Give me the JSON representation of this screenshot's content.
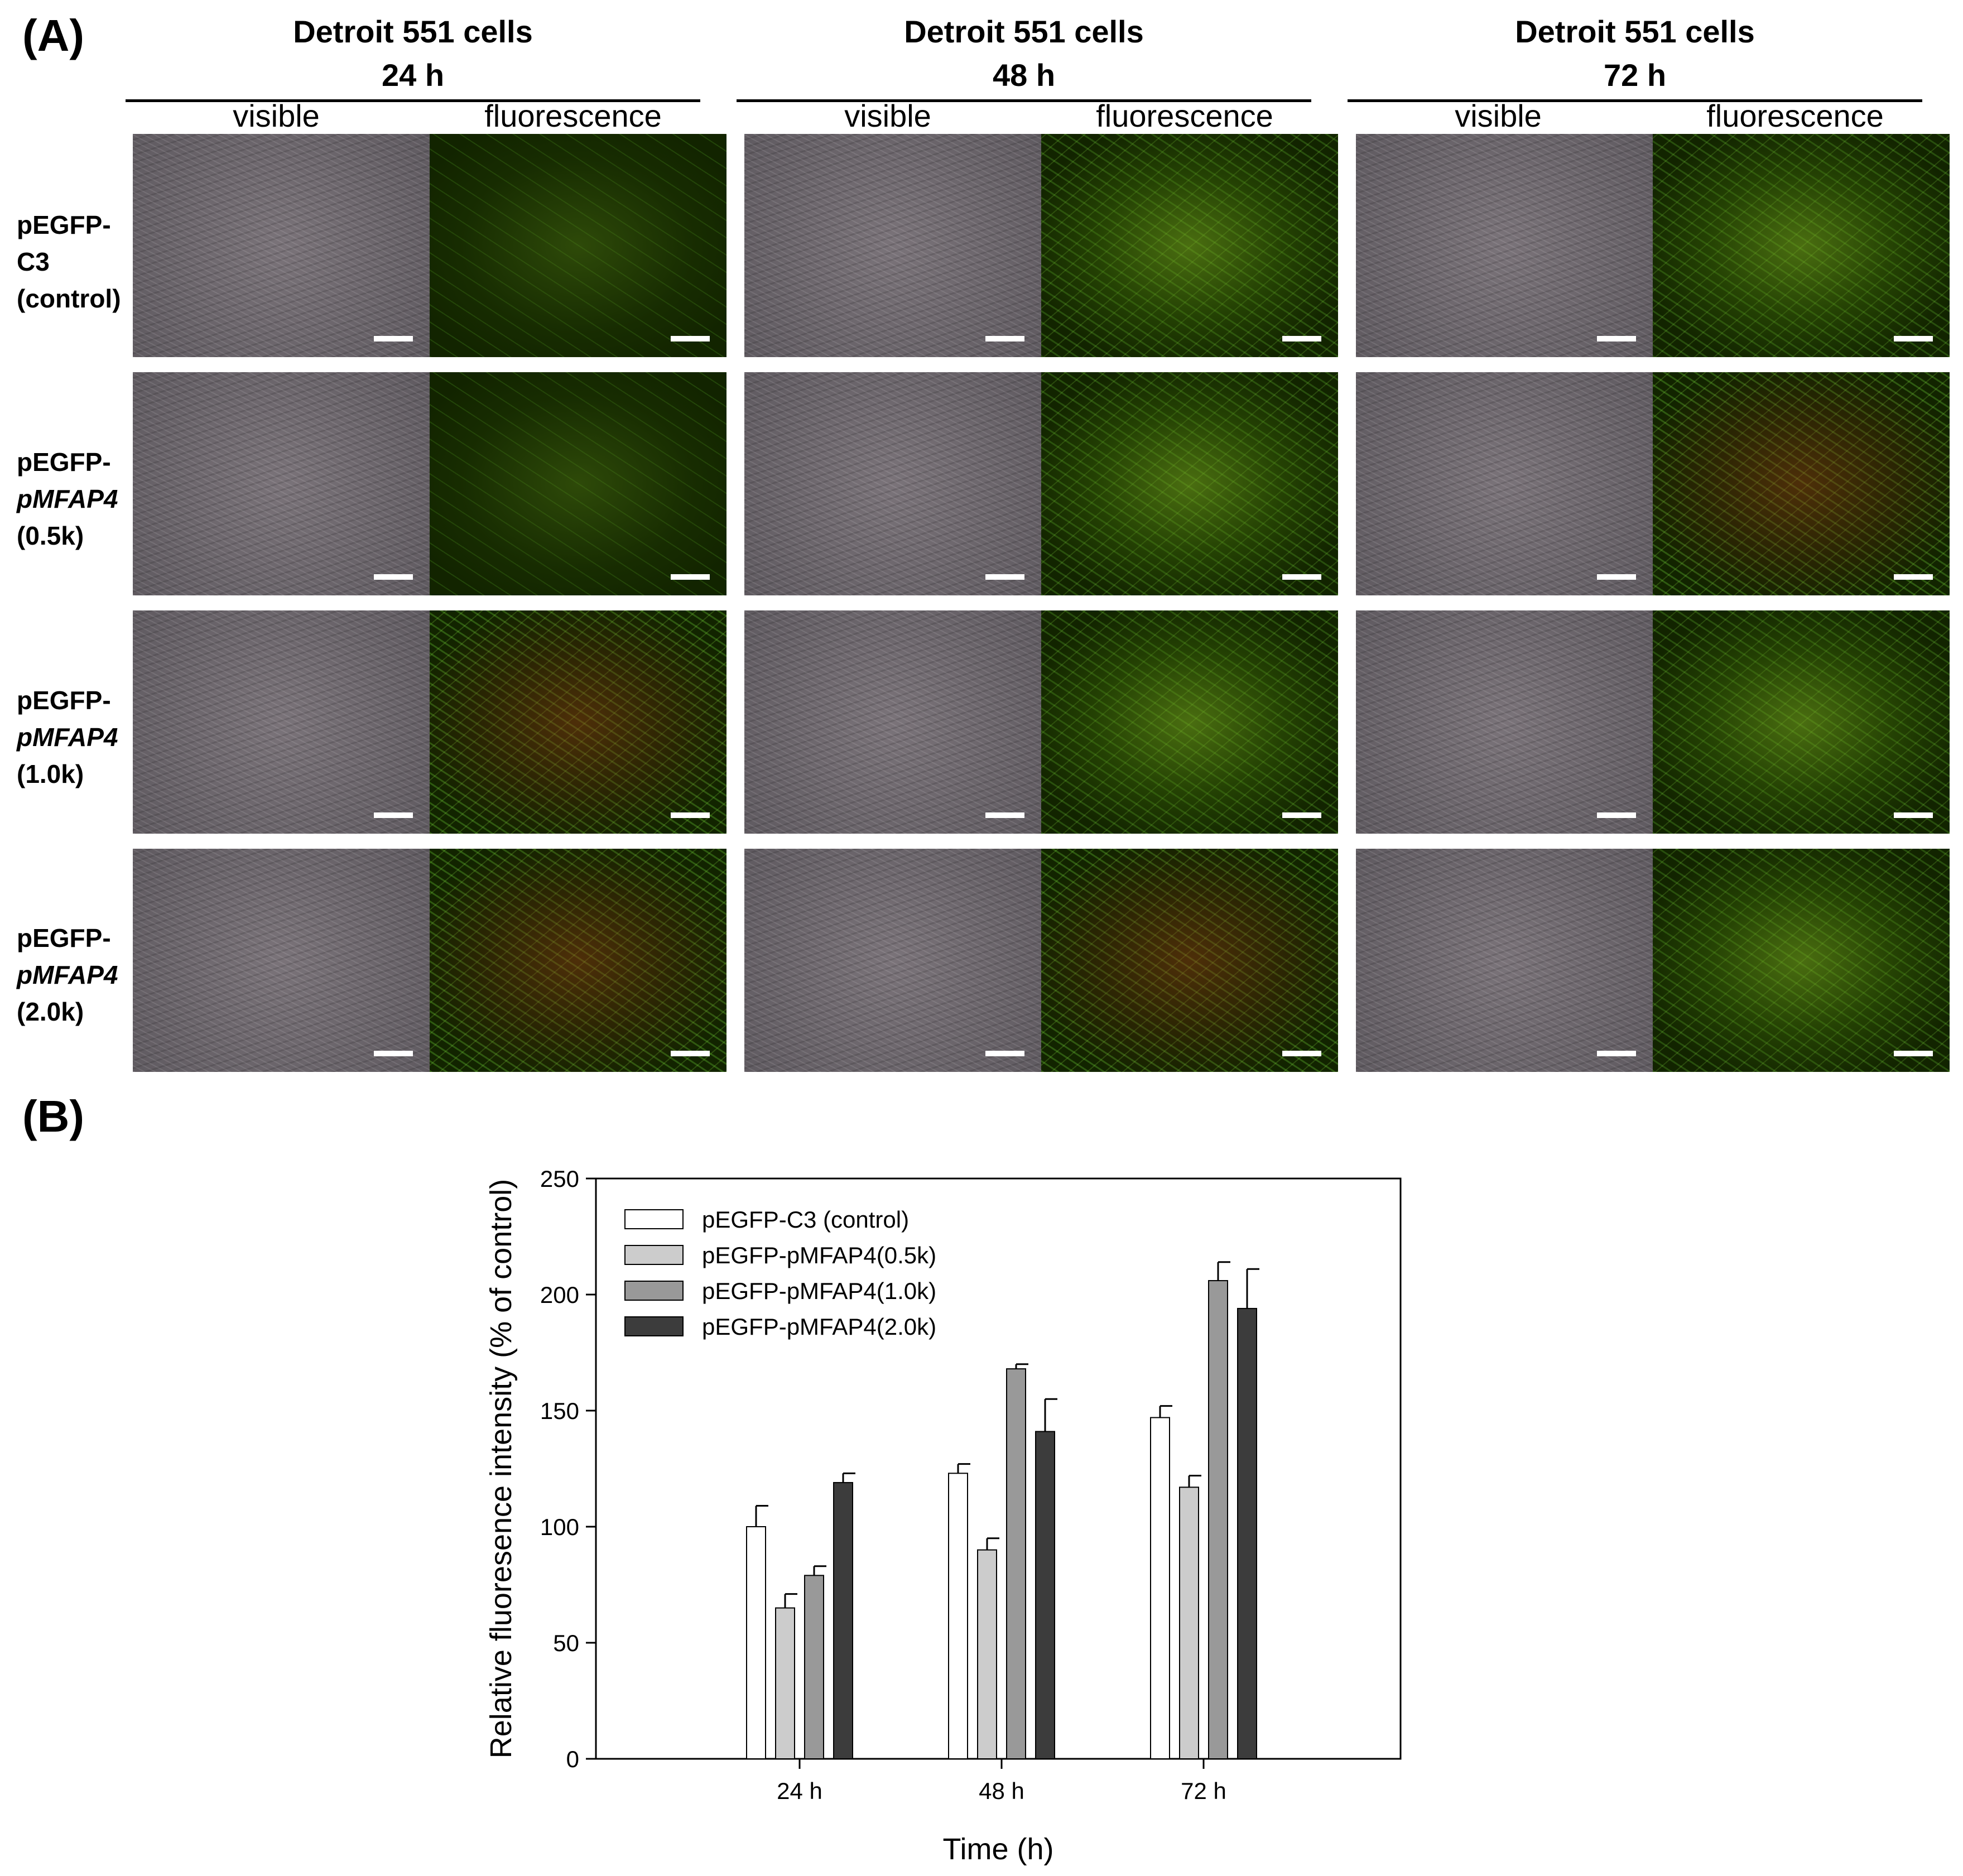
{
  "figure": {
    "panel_a_label": "(A)",
    "panel_b_label": "(B)",
    "time_groups": [
      {
        "cell_line": "Detroit 551 cells",
        "time": "24 h",
        "col_visible": "visible",
        "col_fluor": "fluorescence"
      },
      {
        "cell_line": "Detroit 551 cells",
        "time": "48 h",
        "col_visible": "visible",
        "col_fluor": "fluorescence"
      },
      {
        "cell_line": "Detroit 551 cells",
        "time": "72 h",
        "col_visible": "visible",
        "col_fluor": "fluorescence"
      }
    ],
    "rows": [
      {
        "line1": "pEGFP-",
        "line2": "C3",
        "line3": "(control)",
        "line2_italic": false
      },
      {
        "line1": "pEGFP-",
        "line2": "pMFAP4",
        "line3": "(0.5k)",
        "line2_italic": true
      },
      {
        "line1": "pEGFP-",
        "line2": "pMFAP4",
        "line3": "(1.0k)",
        "line2_italic": true
      },
      {
        "line1": "pEGFP-",
        "line2": "pMFAP4",
        "line3": "(2.0k)",
        "line2_italic": true
      }
    ]
  },
  "chart_data": {
    "type": "bar",
    "title": "",
    "xlabel": "Time (h)",
    "ylabel": "Relative fluoresence intensity (% of control)",
    "categories": [
      "24 h",
      "48 h",
      "72 h"
    ],
    "ylim": [
      0,
      250
    ],
    "yticks": [
      0,
      50,
      100,
      150,
      200,
      250
    ],
    "grid": false,
    "legend_position": "top-left",
    "series": [
      {
        "name": "pEGFP-C3 (control)",
        "color": "#ffffff",
        "values": [
          100,
          123,
          147
        ],
        "errors": [
          9,
          4,
          5
        ]
      },
      {
        "name": "pEGFP-pMFAP4(0.5k)",
        "color": "#cccccc",
        "values": [
          65,
          90,
          117
        ],
        "errors": [
          6,
          5,
          5
        ]
      },
      {
        "name": "pEGFP-pMFAP4(1.0k)",
        "color": "#999999",
        "values": [
          79,
          168,
          206
        ],
        "errors": [
          4,
          2,
          8
        ]
      },
      {
        "name": "pEGFP-pMFAP4(2.0k)",
        "color": "#3c3c3c",
        "values": [
          119,
          141,
          194
        ],
        "errors": [
          4,
          14,
          17
        ]
      }
    ]
  }
}
